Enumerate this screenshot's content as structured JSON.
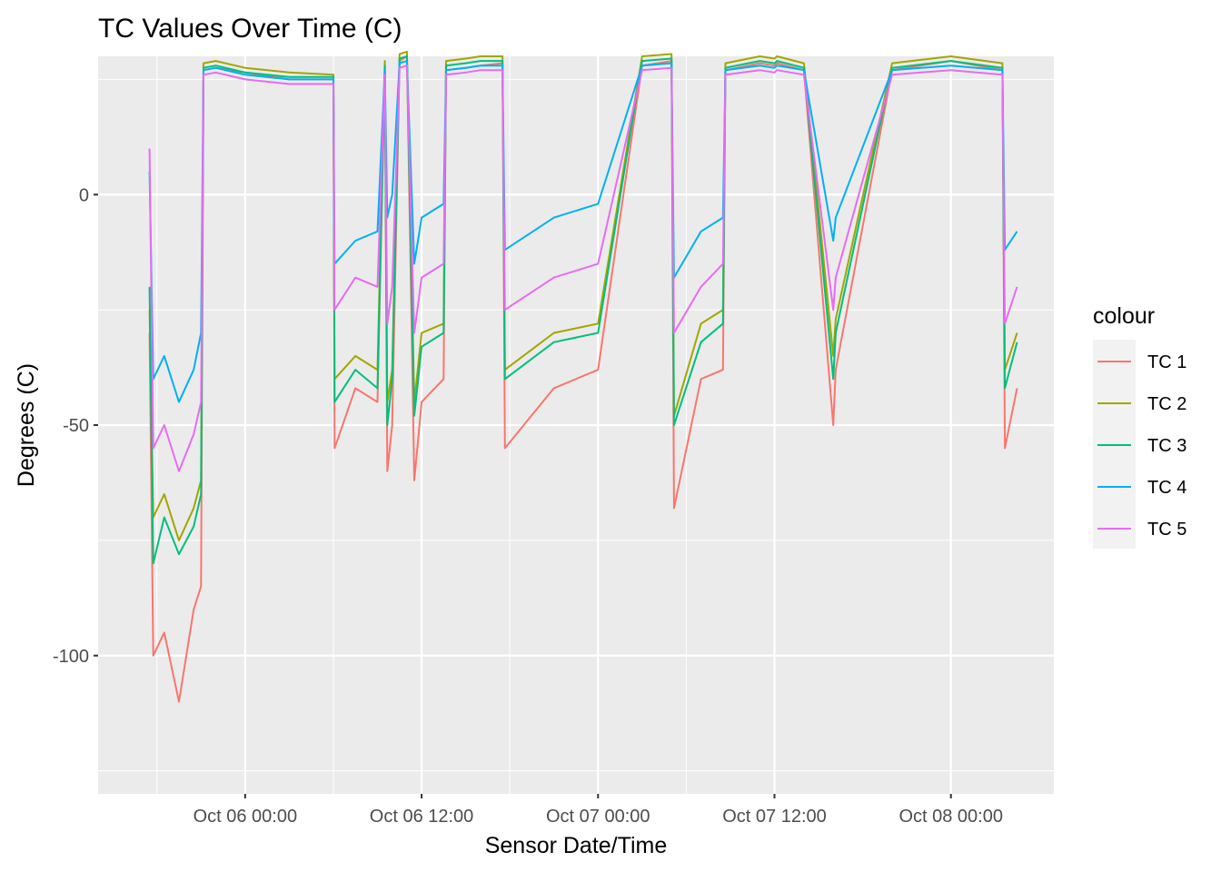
{
  "chart_data": {
    "type": "line",
    "title": "TC Values Over Time (C)",
    "xlabel": "Sensor Date/Time",
    "ylabel": "Degrees (C)",
    "x_ticks": [
      "Oct 06 00:00",
      "Oct 06 12:00",
      "Oct 07 00:00",
      "Oct 07 12:00",
      "Oct 08 00:00"
    ],
    "y_ticks": [
      "0",
      "-50",
      "-100"
    ],
    "xlim": [
      "2023-10-05 14:00",
      "2023-10-08 07:00"
    ],
    "ylim": [
      -130,
      30
    ],
    "grid": true,
    "legend": {
      "title": "colour",
      "position": "right"
    },
    "series_names": [
      "TC 1",
      "TC 2",
      "TC 3",
      "TC 4",
      "TC 5"
    ],
    "colors": [
      "#F8766D",
      "#A3A500",
      "#00BF7D",
      "#00B0F6",
      "#E76BF3"
    ],
    "x": [
      "Oct 05 17:30",
      "Oct 05 17:45",
      "Oct 05 18:30",
      "Oct 05 19:30",
      "Oct 05 20:30",
      "Oct 05 21:00",
      "Oct 05 21:10",
      "Oct 05 22:00",
      "Oct 06 00:00",
      "Oct 06 03:00",
      "Oct 06 06:00",
      "Oct 06 06:05",
      "Oct 06 07:30",
      "Oct 06 09:00",
      "Oct 06 09:30",
      "Oct 06 09:40",
      "Oct 06 10:00",
      "Oct 06 10:30",
      "Oct 06 11:00",
      "Oct 06 11:30",
      "Oct 06 12:00",
      "Oct 06 13:30",
      "Oct 06 13:40",
      "Oct 06 15:00",
      "Oct 06 16:00",
      "Oct 06 17:30",
      "Oct 06 17:40",
      "Oct 06 21:00",
      "Oct 07 00:00",
      "Oct 07 03:00",
      "Oct 07 05:00",
      "Oct 07 05:10",
      "Oct 07 07:00",
      "Oct 07 08:30",
      "Oct 07 08:40",
      "Oct 07 11:00",
      "Oct 07 12:00",
      "Oct 07 12:10",
      "Oct 07 14:00",
      "Oct 07 16:00",
      "Oct 07 16:10",
      "Oct 07 20:00",
      "Oct 08 00:00",
      "Oct 08 03:30",
      "Oct 08 03:40",
      "Oct 08 04:30"
    ],
    "series": [
      {
        "name": "TC 1",
        "values": [
          -30,
          -100,
          -95,
          -110,
          -90,
          -85,
          27,
          27.5,
          26.5,
          25,
          25,
          -55,
          -42,
          -45,
          27,
          -60,
          -50,
          29,
          30,
          -62,
          -45,
          -40,
          27,
          27.5,
          28,
          28.5,
          -55,
          -42,
          -38,
          28,
          29,
          -68,
          -40,
          -38,
          27,
          28.5,
          28,
          28.5,
          27,
          -50,
          -38,
          27,
          29,
          27,
          -55,
          -42
        ]
      },
      {
        "name": "TC 2",
        "values": [
          -25,
          -70,
          -65,
          -75,
          -68,
          -62,
          28.5,
          29,
          27.5,
          26.5,
          26,
          -40,
          -35,
          -38,
          29,
          -45,
          -38,
          30.5,
          31,
          -45,
          -30,
          -28,
          29,
          29.5,
          30,
          30,
          -38,
          -30,
          -28,
          30,
          30.5,
          -48,
          -28,
          -25,
          28.5,
          30,
          29.5,
          30,
          28.5,
          -35,
          -27,
          28.5,
          30,
          28.5,
          -38,
          -30
        ]
      },
      {
        "name": "TC 3",
        "values": [
          -20,
          -80,
          -70,
          -78,
          -72,
          -65,
          27.5,
          28,
          26.5,
          25.5,
          25.5,
          -45,
          -38,
          -42,
          28,
          -50,
          -40,
          29.5,
          30,
          -48,
          -33,
          -30,
          28,
          28.5,
          29,
          29,
          -40,
          -32,
          -30,
          29,
          29.5,
          -50,
          -32,
          -28,
          27.5,
          29,
          28.5,
          29,
          27.5,
          -40,
          -30,
          27.5,
          29,
          27.5,
          -42,
          -32
        ]
      },
      {
        "name": "TC 4",
        "values": [
          5,
          -40,
          -35,
          -45,
          -38,
          -30,
          27,
          27.5,
          26,
          25,
          25,
          -15,
          -10,
          -8,
          27,
          -5,
          0,
          28.5,
          29,
          -15,
          -5,
          -2,
          27,
          27.5,
          28,
          28,
          -12,
          -5,
          -2,
          28,
          28.5,
          -18,
          -8,
          -5,
          27,
          28,
          27.5,
          28,
          27,
          -10,
          -5,
          27,
          28,
          27,
          -12,
          -8
        ]
      },
      {
        "name": "TC 5",
        "values": [
          10,
          -55,
          -50,
          -60,
          -52,
          -45,
          26,
          26.5,
          25,
          24,
          24,
          -25,
          -18,
          -20,
          26,
          -28,
          -20,
          27.5,
          28,
          -30,
          -18,
          -15,
          26,
          26.5,
          27,
          27,
          -25,
          -18,
          -15,
          27,
          27.5,
          -30,
          -20,
          -15,
          26,
          27,
          26.5,
          27,
          26,
          -25,
          -18,
          26,
          27,
          26,
          -28,
          -20
        ]
      }
    ]
  }
}
